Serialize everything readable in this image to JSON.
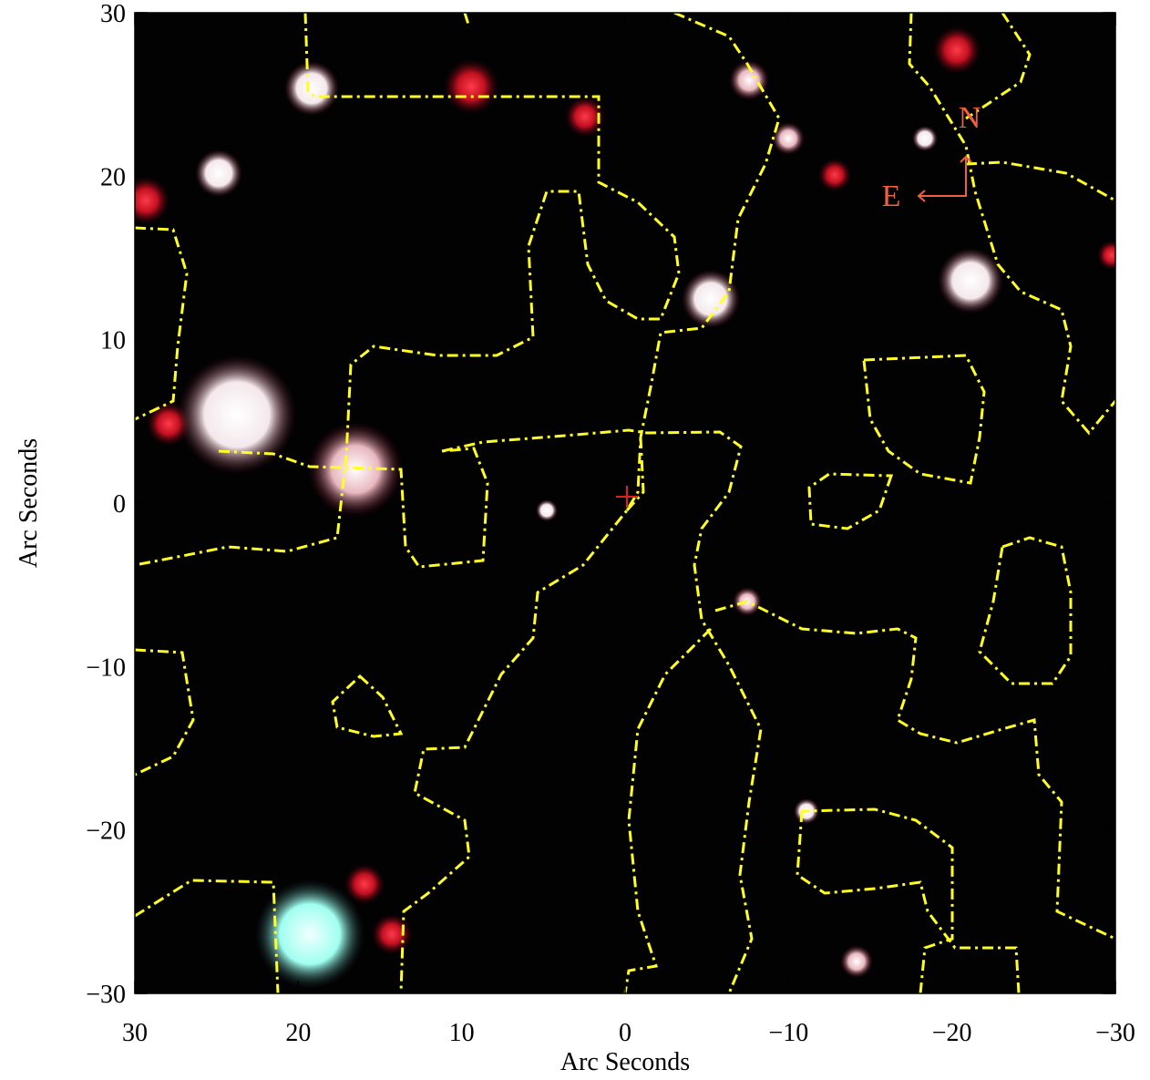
{
  "chart_data": {
    "type": "image",
    "xlabel": "Arc Seconds",
    "ylabel": "Arc Seconds",
    "xlim": [
      30,
      -30
    ],
    "ylim": [
      -30,
      30
    ],
    "xticks": [
      30,
      20,
      10,
      0,
      {
        "value": -10,
        "label": "−10"
      },
      {
        "value": -20,
        "label": "−20"
      },
      {
        "value": -30,
        "label": "−30"
      }
    ],
    "yticks": [
      {
        "value": -30,
        "label": "−30"
      },
      {
        "value": -20,
        "label": "−20"
      },
      {
        "value": -10,
        "label": "−10"
      },
      0,
      10,
      20,
      30
    ],
    "annotations": [
      "N",
      "E"
    ]
  }
}
